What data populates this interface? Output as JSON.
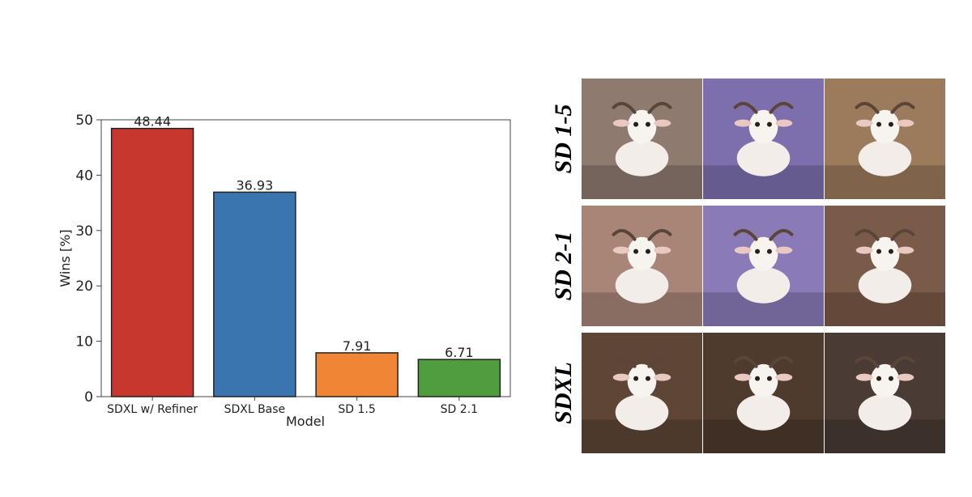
{
  "chart_data": {
    "type": "bar",
    "categories": [
      "SDXL w/ Refiner",
      "SDXL Base",
      "SD 1.5",
      "SD 2.1"
    ],
    "values": [
      48.44,
      36.93,
      7.91,
      6.71
    ],
    "value_labels": [
      "48.44",
      "36.93",
      "7.91",
      "6.71"
    ],
    "colors": [
      "#c8372d",
      "#3a75b0",
      "#ef8535",
      "#4f9d3e"
    ],
    "xlabel": "Model",
    "ylabel": "Wins [%]",
    "ylim": [
      0,
      50
    ],
    "yticks": [
      0,
      10,
      20,
      30,
      40,
      50
    ],
    "grid": false
  },
  "image_grid": {
    "rows": [
      {
        "label": "SD 1-5",
        "images": [
          "goat-image",
          "goat-image",
          "goat-image"
        ],
        "tones": [
          "#8f7a70",
          "#7d6fae",
          "#9c7a5c"
        ]
      },
      {
        "label": "SD 2-1",
        "images": [
          "goat-image",
          "goat-image",
          "goat-image"
        ],
        "tones": [
          "#a98578",
          "#8a7ab8",
          "#7a5a48"
        ]
      },
      {
        "label": "SDXL",
        "images": [
          "goat-image",
          "goat-image",
          "goat-image"
        ],
        "tones": [
          "#5e4536",
          "#4f3a2e",
          "#4a3b35"
        ]
      }
    ]
  }
}
